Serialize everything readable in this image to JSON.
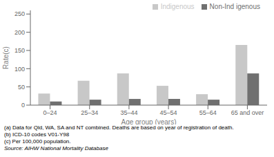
{
  "chart_data": {
    "type": "bar",
    "xlabel": "Age group (years)",
    "ylabel": "Rate(c)",
    "categories": [
      "0–24",
      "25–34",
      "35–44",
      "45–54",
      "55–64",
      "65 and over"
    ],
    "series": [
      {
        "name": "Indigenous",
        "color": "#c8c8c8",
        "values": [
          32,
          67,
          87,
          53,
          30,
          165
        ]
      },
      {
        "name": "Non-Ind igenous",
        "color": "#707070",
        "values": [
          10,
          15,
          17,
          17,
          15,
          87
        ]
      }
    ],
    "ylim": [
      0,
      260
    ],
    "yticks": [
      0,
      50,
      100,
      150,
      200,
      250
    ],
    "grid": false,
    "legend": "upper right",
    "annotations": [
      "(a) Data for Qld, WA, SA and NT combined.  Deaths are based on year of registration of death.",
      "(b)  ICD-10 codes V01-Y98",
      "(c)  Per 100,000 population.",
      "Source:  AIHW National Mortality Database"
    ]
  }
}
